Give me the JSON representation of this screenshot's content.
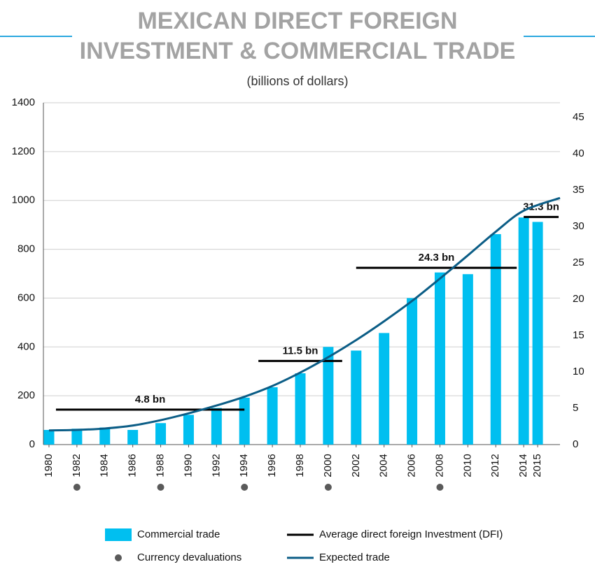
{
  "chart_data": {
    "type": "bar",
    "title": [
      "MEXICAN DIRECT FOREIGN",
      "INVESTMENT & COMMERCIAL TRADE"
    ],
    "subtitle": "(billions of dollars)",
    "xlim": [
      1979.6,
      2016.6
    ],
    "xticks": [
      1980,
      1982,
      1984,
      1986,
      1988,
      1990,
      1992,
      1994,
      1996,
      1998,
      2000,
      2002,
      2004,
      2006,
      2008,
      2010,
      2012,
      2014,
      2015
    ],
    "ylim": [
      0,
      1400
    ],
    "yticks": [
      0,
      200,
      400,
      600,
      800,
      1000,
      1200,
      1400
    ],
    "y2lim": [
      0,
      47
    ],
    "y2ticks": [
      0,
      5,
      10,
      15,
      20,
      25,
      30,
      35,
      40,
      45
    ],
    "grid": true,
    "series": [
      {
        "name": "Commercial trade",
        "type": "bar",
        "color": "#00bff0",
        "x": [
          1980,
          1982,
          1984,
          1986,
          1988,
          1990,
          1992,
          1994,
          1996,
          1998,
          2000,
          2002,
          2004,
          2006,
          2008,
          2010,
          2012,
          2014,
          2015
        ],
        "values": [
          60,
          65,
          70,
          60,
          88,
          122,
          150,
          192,
          235,
          292,
          400,
          385,
          457,
          600,
          705,
          698,
          862,
          930,
          912
        ]
      },
      {
        "name": "Currency devaluations",
        "type": "scatter",
        "color": "#5a5a5a",
        "x": [
          1982,
          1988,
          1994,
          2000,
          2008
        ]
      },
      {
        "name": "Average direct foreign Investment (DFI)",
        "type": "segments",
        "axis": "y2",
        "color": "#000000",
        "segments": [
          {
            "x": [
              1980.5,
              1994
            ],
            "value": 4.8,
            "label": "4.8 bn"
          },
          {
            "x": [
              1995,
              2001
            ],
            "value": 11.5,
            "label": "11.5 bn"
          },
          {
            "x": [
              2002,
              2013.5
            ],
            "value": 24.3,
            "label": "24.3 bn"
          },
          {
            "x": [
              2014,
              2016.5
            ],
            "value": 31.3,
            "label": "31.3 bn"
          }
        ]
      },
      {
        "name": "Expected trade",
        "type": "line",
        "color": "#0b5d86",
        "x": [
          1980,
          1982,
          1984,
          1986,
          1988,
          1990,
          1992,
          1994,
          1996,
          1998,
          2000,
          2002,
          2004,
          2006,
          2008,
          2010,
          2012,
          2014,
          2016.6
        ],
        "values": [
          58,
          60,
          66,
          78,
          100,
          128,
          160,
          196,
          240,
          295,
          358,
          428,
          505,
          588,
          680,
          775,
          872,
          958,
          1010
        ]
      }
    ]
  }
}
